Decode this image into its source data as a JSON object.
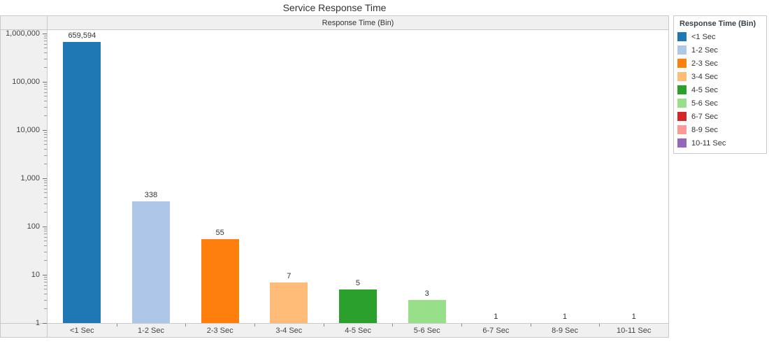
{
  "page": {
    "title": "Service Response Time"
  },
  "chart_data": {
    "type": "bar",
    "title": "Service Response Time",
    "column_header": "Response Time (Bin)",
    "categories": [
      "<1 Sec",
      "1-2 Sec",
      "2-3 Sec",
      "3-4 Sec",
      "4-5 Sec",
      "5-6 Sec",
      "6-7 Sec",
      "8-9 Sec",
      "10-11 Sec"
    ],
    "values": [
      659594,
      338,
      55,
      7,
      5,
      3,
      1,
      1,
      1
    ],
    "value_labels": [
      "659,594",
      "338",
      "55",
      "7",
      "5",
      "3",
      "1",
      "1",
      "1"
    ],
    "bar_colors": [
      "#1F77B4",
      "#AEC7E8",
      "#FF7F0E",
      "#FFBB78",
      "#2CA02C",
      "#98DF8A",
      "#D62728",
      "#FF9896",
      "#9467BD"
    ],
    "y_axis": {
      "scale": "log",
      "min": 1,
      "max": 1000000,
      "tick_labels": [
        "1",
        "10",
        "100",
        "1,000",
        "10,000",
        "100,000",
        "1,000,000"
      ]
    },
    "grid": false,
    "legend_position": "right"
  },
  "legend": {
    "title": "Response Time (Bin)",
    "items": [
      {
        "label": "<1 Sec",
        "color": "#1F77B4"
      },
      {
        "label": "1-2 Sec",
        "color": "#AEC7E8"
      },
      {
        "label": "2-3 Sec",
        "color": "#FF7F0E"
      },
      {
        "label": "3-4 Sec",
        "color": "#FFBB78"
      },
      {
        "label": "4-5 Sec",
        "color": "#2CA02C"
      },
      {
        "label": "5-6 Sec",
        "color": "#98DF8A"
      },
      {
        "label": "6-7 Sec",
        "color": "#D62728"
      },
      {
        "label": "8-9 Sec",
        "color": "#FF9896"
      },
      {
        "label": "10-11 Sec",
        "color": "#9467BD"
      }
    ]
  },
  "colors": {
    "band_bg": "#F0F0F0",
    "frame_border": "#C9C9C9",
    "plot_bg": "#FFFFFF",
    "text_primary": "#333333",
    "text_axis": "#444444"
  }
}
